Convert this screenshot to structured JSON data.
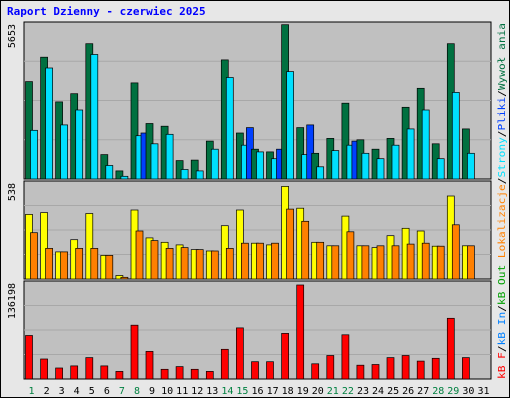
{
  "chart_data": {
    "type": "bar",
    "title": "Raport Dzienny -  czerwiec 2025",
    "x": [
      "1",
      "2",
      "3",
      "4",
      "5",
      "6",
      "7",
      "8",
      "9",
      "10",
      "11",
      "12",
      "13",
      "14",
      "15",
      "16",
      "17",
      "18",
      "19",
      "20",
      "21",
      "22",
      "23",
      "24",
      "25",
      "26",
      "27",
      "28",
      "29",
      "30",
      "31"
    ],
    "weekend_days": [
      1,
      7,
      8,
      14,
      15,
      21,
      22,
      28,
      29
    ],
    "panels": [
      {
        "id": "top",
        "ymax_label": "5653",
        "ymax": 5653,
        "series": [
          {
            "name": "Wizyty",
            "color": "#007040",
            "values": [
              3600,
              4500,
              2850,
              3150,
              5000,
              900,
              300,
              3550,
              2050,
              1950,
              680,
              700,
              1400,
              4400,
              1700,
              1100,
              1000,
              5700,
              1900,
              950,
              1500,
              2800,
              1450,
              1100,
              1500,
              2650,
              3350,
              1300,
              5000,
              1850,
              0
            ]
          },
          {
            "name": "Strony",
            "color": "#00e0ff",
            "values": [
              1800,
              4100,
              2000,
              2550,
              4600,
              500,
              100,
              1600,
              1300,
              1650,
              350,
              300,
              1100,
              3750,
              1250,
              1000,
              750,
              3970,
              900,
              450,
              1050,
              1250,
              950,
              750,
              1250,
              1850,
              2550,
              750,
              3200,
              950,
              0
            ]
          },
          {
            "name": "Pliki",
            "color": "#0040ff",
            "values": [
              0,
              0,
              0,
              0,
              0,
              0,
              0,
              1700,
              0,
              0,
              0,
              0,
              0,
              0,
              1900,
              0,
              1100,
              0,
              2000,
              0,
              0,
              1400,
              0,
              0,
              0,
              0,
              0,
              0,
              0,
              0,
              0
            ]
          }
        ]
      },
      {
        "id": "middle",
        "ymax_label": "538",
        "ymax": 538,
        "series": [
          {
            "name": "Odsłony",
            "color": "#ffff00",
            "values": [
              370,
              380,
              155,
              225,
              375,
              135,
              20,
              395,
              235,
              210,
              195,
              168,
              160,
              305,
              395,
              205,
              195,
              530,
              405,
              210,
              190,
              360,
              190,
              180,
              248,
              290,
              275,
              188,
              475,
              190,
              0
            ]
          },
          {
            "name": "Lokalizacje",
            "color": "#ff8000",
            "values": [
              265,
              175,
              155,
              175,
              175,
              135,
              10,
              275,
              220,
              175,
              180,
              168,
              160,
              175,
              205,
              205,
              205,
              400,
              330,
              210,
              190,
              270,
              190,
              190,
              190,
              200,
              205,
              188,
              310,
              190,
              0
            ]
          }
        ]
      },
      {
        "id": "bottom",
        "ymax_label": "136198",
        "ymax": 136198,
        "series": [
          {
            "name": "kB F",
            "color": "#ff0000",
            "values": [
              63000,
              29000,
              16000,
              19000,
              31000,
              19000,
              11000,
              78000,
              40000,
              14000,
              18000,
              14000,
              11000,
              43000,
              74000,
              25000,
              25000,
              66000,
              136198,
              22000,
              34000,
              64000,
              20000,
              21000,
              31000,
              34000,
              26000,
              30000,
              88000,
              31000,
              0
            ]
          }
        ]
      }
    ],
    "right_label_parts": [
      {
        "text": "kB F",
        "color": "#ff0000"
      },
      {
        "text": "/",
        "color": "#000000"
      },
      {
        "text": "kB In",
        "color": "#0080ff"
      },
      {
        "text": "/",
        "color": "#000000"
      },
      {
        "text": "kB Out",
        "color": "#00a000"
      },
      {
        "text": " ",
        "color": "#000000"
      },
      {
        "text": "Lokalizacje",
        "color": "#ff8000"
      },
      {
        "text": "/",
        "color": "#000000"
      },
      {
        "text": "Strony",
        "color": "#00e0ff"
      },
      {
        "text": "/",
        "color": "#000000"
      },
      {
        "text": "Pliki",
        "color": "#0040ff"
      },
      {
        "text": "/",
        "color": "#000000"
      },
      {
        "text": "Wywoł ania",
        "color": "#007040"
      }
    ],
    "colors": {
      "title": "#0000ff",
      "weekday_tick": "#000000",
      "weekend_tick": "#008040",
      "panel_bg": "#c0c0c0",
      "background": "#e7e7e7"
    }
  }
}
